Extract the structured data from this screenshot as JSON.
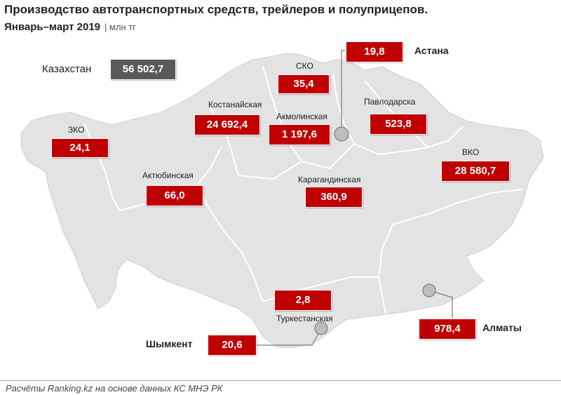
{
  "title": "Производство автотранспортных средств, трейлеров и полуприцепов.",
  "subtitle": "Январь–март 2019",
  "unit": "| млн тг",
  "total": {
    "label": "Казахстан",
    "value": "56 502,7"
  },
  "regions": {
    "zko": {
      "label": "ЗКО",
      "value": "24,1"
    },
    "aktobe": {
      "label": "Актюбинская",
      "value": "66,0"
    },
    "kostanay": {
      "label": "Костанайская",
      "value": "24 692,4"
    },
    "sko": {
      "label": "СКО",
      "value": "35,4"
    },
    "akmola": {
      "label": "Акмолинская",
      "value": "1 197,6"
    },
    "pavlodar": {
      "label": "Павлодарска",
      "value": "523,8"
    },
    "vko": {
      "label": "ВКО",
      "value": "28 580,7"
    },
    "karaganda": {
      "label": "Карагандинская",
      "value": "360,9"
    },
    "turkestan": {
      "label": "Туркестанская",
      "value": "2,8"
    }
  },
  "cities": {
    "astana": {
      "label": "Астана",
      "value": "19,8"
    },
    "almaty": {
      "label": "Алматы",
      "value": "978,4"
    },
    "shymkent": {
      "label": "Шымкент",
      "value": "20,6"
    }
  },
  "colors": {
    "value_box": "#c00000",
    "total_box": "#595959",
    "map_fill": "#e3e3e3",
    "map_border": "#ffffff"
  },
  "footer": "Расчёты Ranking.kz на основе данных КС МНЭ РК"
}
